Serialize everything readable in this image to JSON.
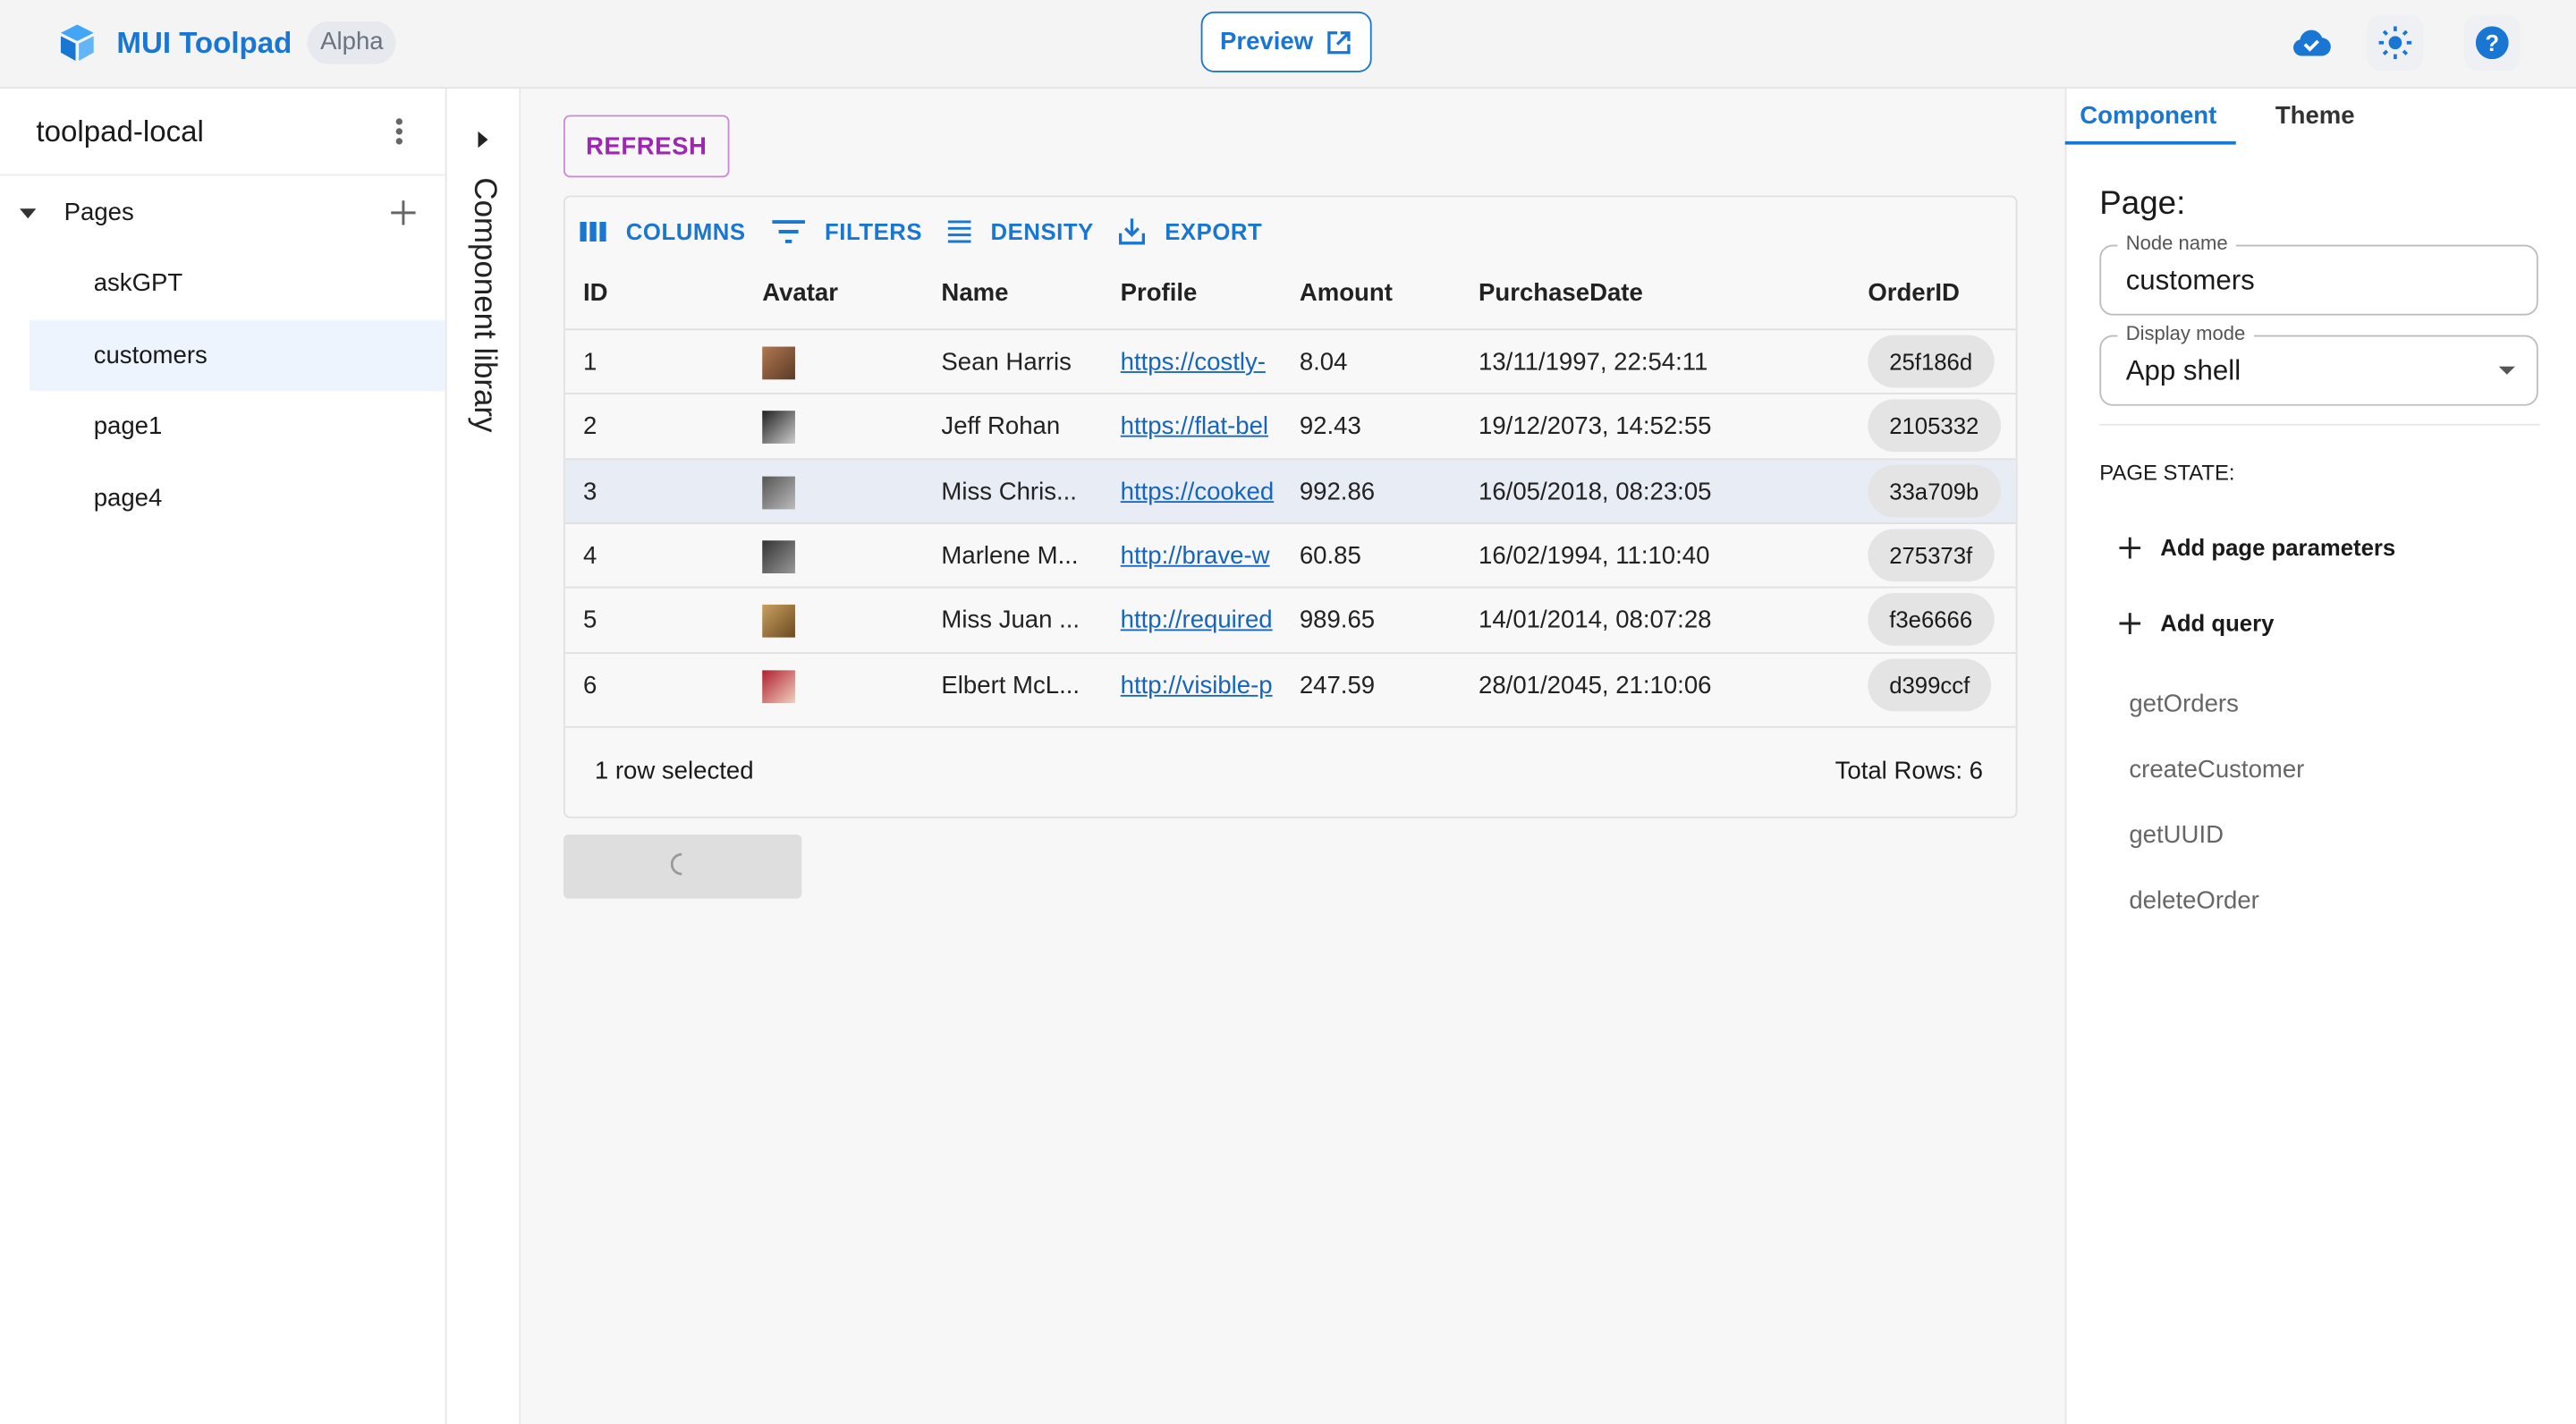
{
  "header": {
    "brand": "MUI Toolpad",
    "badge": "Alpha",
    "preview_label": "Preview"
  },
  "sidebar": {
    "project": "toolpad-local",
    "pages_label": "Pages",
    "pages": [
      {
        "label": "askGPT"
      },
      {
        "label": "customers",
        "selected": true
      },
      {
        "label": "page1"
      },
      {
        "label": "page4"
      }
    ]
  },
  "component_library": "Component library",
  "main": {
    "refresh_label": "REFRESH",
    "toolbar": {
      "columns": "COLUMNS",
      "filters": "FILTERS",
      "density": "DENSITY",
      "export": "EXPORT"
    },
    "columns": [
      "ID",
      "Avatar",
      "Name",
      "Profile",
      "Amount",
      "PurchaseDate",
      "OrderID"
    ],
    "rows": [
      {
        "id": "1",
        "name": "Sean Harris",
        "profile": "https://costly-",
        "amount": "8.04",
        "date": "13/11/1997, 22:54:11",
        "order": "25f186d"
      },
      {
        "id": "2",
        "name": "Jeff Rohan",
        "profile": "https://flat-bel",
        "amount": "92.43",
        "date": "19/12/2073, 14:52:55",
        "order": "2105332"
      },
      {
        "id": "3",
        "name": "Miss Chris...",
        "profile": "https://cooked",
        "amount": "992.86",
        "date": "16/05/2018, 08:23:05",
        "order": "33a709b",
        "selected": true
      },
      {
        "id": "4",
        "name": "Marlene M...",
        "profile": "http://brave-w",
        "amount": "60.85",
        "date": "16/02/1994, 11:10:40",
        "order": "275373f"
      },
      {
        "id": "5",
        "name": "Miss Juan ...",
        "profile": "http://required",
        "amount": "989.65",
        "date": "14/01/2014, 08:07:28",
        "order": "f3e6666"
      },
      {
        "id": "6",
        "name": "Elbert McL...",
        "profile": "http://visible-p",
        "amount": "247.59",
        "date": "28/01/2045, 21:10:06",
        "order": "d399ccf"
      }
    ],
    "footer": {
      "selected": "1 row selected",
      "total": "Total Rows: 6"
    }
  },
  "right": {
    "tabs": [
      "Component",
      "Theme"
    ],
    "page_heading": "Page:",
    "node_name_label": "Node name",
    "node_name": "customers",
    "display_mode_label": "Display mode",
    "display_mode": "App shell",
    "page_state": "PAGE STATE:",
    "add_params": "Add page parameters",
    "add_query": "Add query",
    "queries": [
      "getOrders",
      "createCustomer",
      "getUUID",
      "deleteOrder"
    ]
  },
  "colors": {
    "primary": "#1976d2",
    "secondary": "#9c27b0"
  }
}
